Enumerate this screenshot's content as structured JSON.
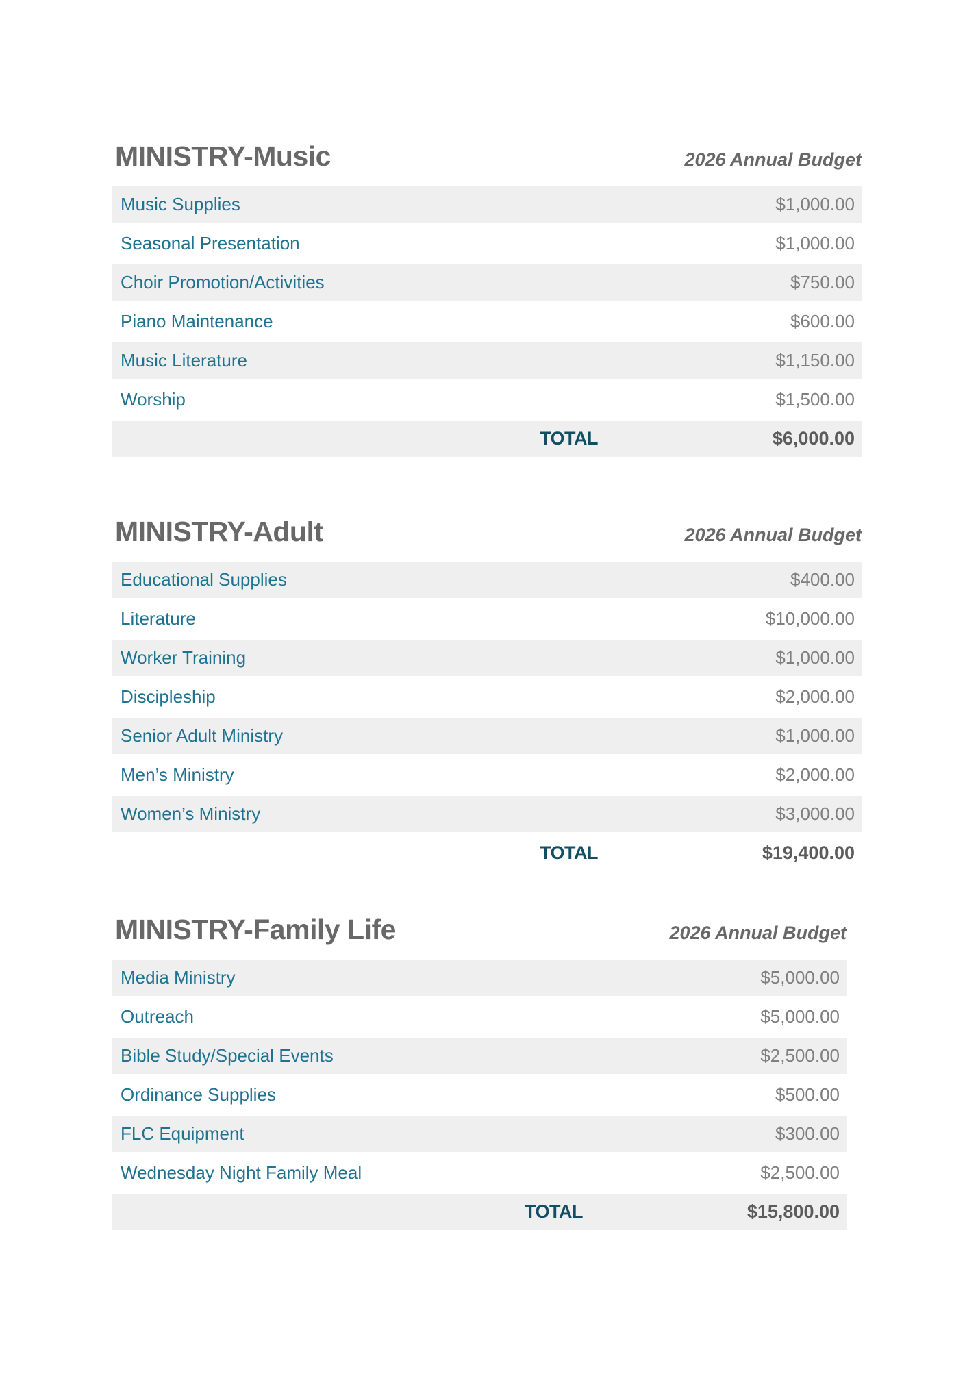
{
  "colors": {
    "label_teal": "#1f7391",
    "total_teal": "#134e63",
    "heading_gray": "#686868",
    "amount_gray": "#7f7f7f",
    "total_amount_gray": "#5c5c5c",
    "row_stripe": "#efefef"
  },
  "sections": [
    {
      "title": "MINISTRY-Music",
      "budget_header": "2026 Annual Budget",
      "rows": [
        {
          "label": "Music Supplies",
          "amount": "$1,000.00"
        },
        {
          "label": "Seasonal Presentation",
          "amount": "$1,000.00"
        },
        {
          "label": "Choir Promotion/Activities",
          "amount": "$750.00"
        },
        {
          "label": "Piano Maintenance",
          "amount": "$600.00"
        },
        {
          "label": "Music Literature",
          "amount": "$1,150.00"
        },
        {
          "label": "Worship",
          "amount": "$1,500.00"
        }
      ],
      "total": {
        "label": "TOTAL",
        "amount": "$6,000.00"
      }
    },
    {
      "title": "MINISTRY-Adult",
      "budget_header": "2026 Annual Budget",
      "rows": [
        {
          "label": "Educational Supplies",
          "amount": "$400.00"
        },
        {
          "label": "Literature",
          "amount": "$10,000.00"
        },
        {
          "label": "Worker Training",
          "amount": "$1,000.00"
        },
        {
          "label": "Discipleship",
          "amount": "$2,000.00"
        },
        {
          "label": "Senior Adult Ministry",
          "amount": "$1,000.00"
        },
        {
          "label": "Men’s Ministry",
          "amount": "$2,000.00"
        },
        {
          "label": "Women’s Ministry",
          "amount": "$3,000.00"
        }
      ],
      "total": {
        "label": "TOTAL",
        "amount": "$19,400.00"
      }
    },
    {
      "title": "MINISTRY-Family Life",
      "budget_header": "2026 Annual Budget",
      "rows": [
        {
          "label": "Media Ministry",
          "amount": "$5,000.00"
        },
        {
          "label": "Outreach",
          "amount": "$5,000.00"
        },
        {
          "label": "Bible Study/Special Events",
          "amount": "$2,500.00"
        },
        {
          "label": "Ordinance Supplies",
          "amount": "$500.00"
        },
        {
          "label": "FLC Equipment",
          "amount": "$300.00"
        },
        {
          "label": "Wednesday Night Family Meal",
          "amount": "$2,500.00"
        }
      ],
      "total": {
        "label": "TOTAL",
        "amount": "$15,800.00"
      }
    }
  ]
}
